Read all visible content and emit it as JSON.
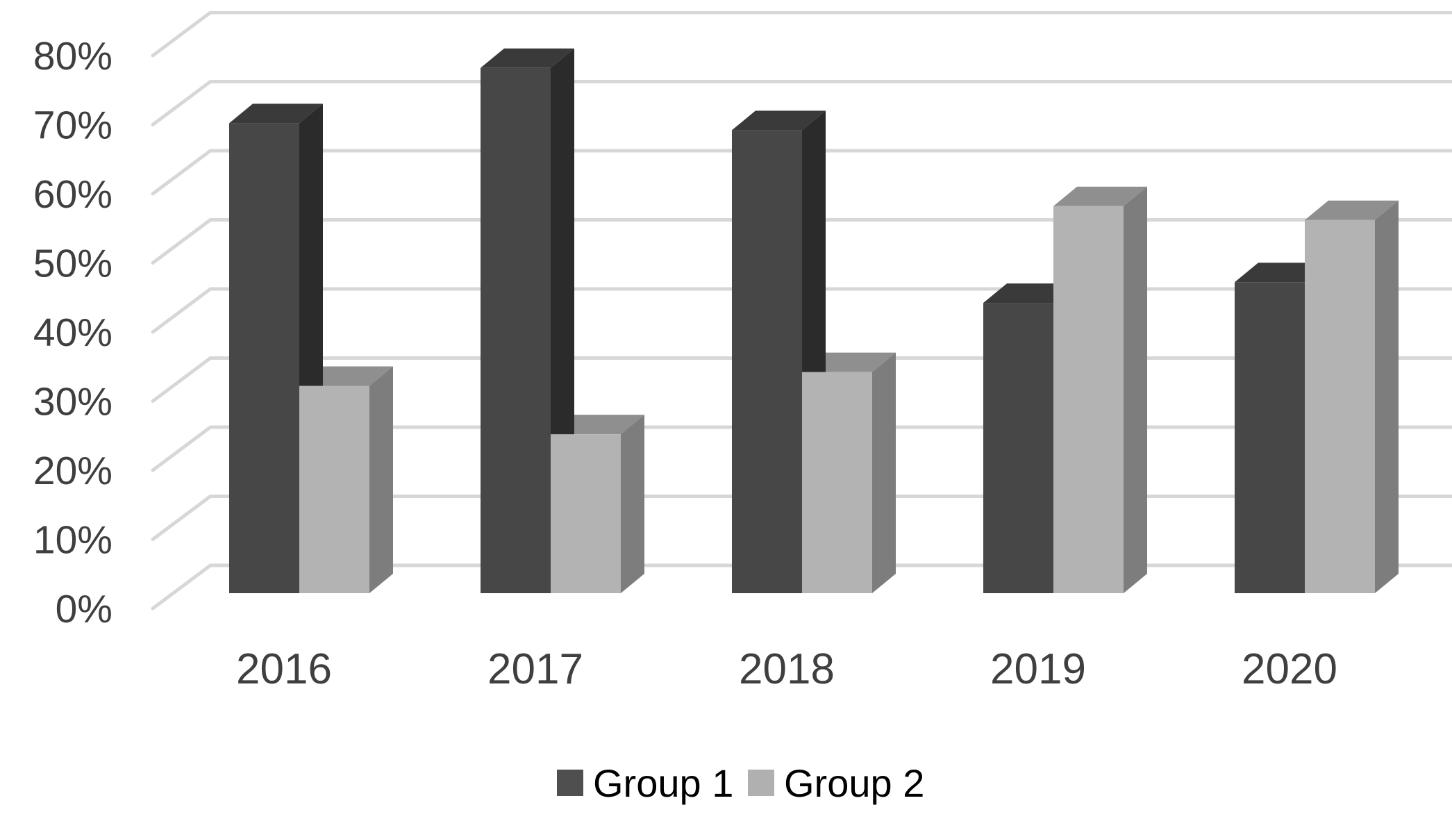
{
  "chart_data": {
    "type": "bar",
    "variant": "3d-column",
    "title": "",
    "categories": [
      "2016",
      "2017",
      "2018",
      "2019",
      "2020"
    ],
    "series": [
      {
        "name": "Group 1",
        "values": [
          68,
          76,
          67,
          42,
          45
        ]
      },
      {
        "name": "Group 2",
        "values": [
          30,
          23,
          32,
          56,
          54
        ]
      }
    ],
    "y_ticks": [
      "0%",
      "10%",
      "20%",
      "30%",
      "40%",
      "50%",
      "60%",
      "70%",
      "80%"
    ],
    "ylim": [
      0,
      80
    ],
    "y_unit": "%",
    "grid": true,
    "legend_position": "bottom"
  },
  "legend": {
    "items": [
      {
        "label": "Group 1",
        "swatch_color": "#4f4f4f"
      },
      {
        "label": "Group 2",
        "swatch_color": "#b0b0b0"
      }
    ]
  },
  "colors": {
    "group1_front": "#474747",
    "group1_top": "#3a3a3a",
    "group1_side": "#2b2b2b",
    "group2_front": "#b3b3b3",
    "group2_top": "#8f8f8f",
    "group2_side": "#7d7d7d",
    "gridline": "#d7d7d7",
    "axis_text": "#3f3f3f",
    "legend_text": "#000000"
  }
}
